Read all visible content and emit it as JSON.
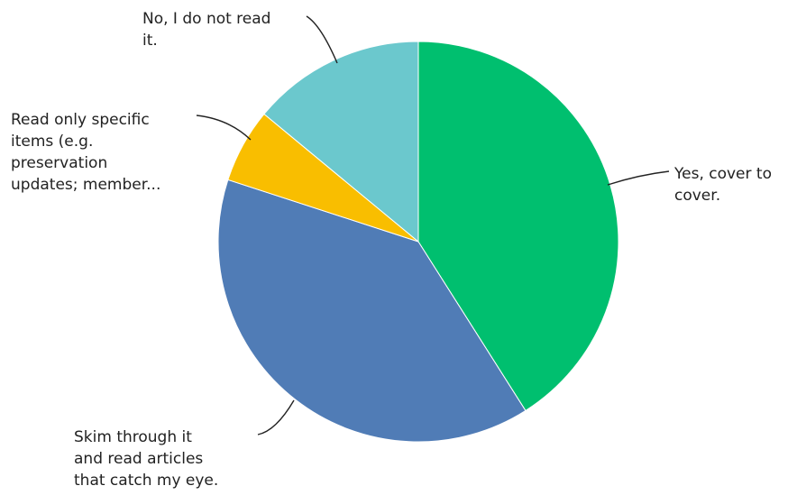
{
  "chart_data": {
    "type": "pie",
    "title": "",
    "slices": [
      {
        "label_lines": [
          "Yes, cover to",
          "cover."
        ],
        "value": 41,
        "color": "#00BF6F"
      },
      {
        "label_lines": [
          "Skim through it",
          "and read articles",
          "that catch my eye."
        ],
        "value": 39,
        "color": "#507CB6"
      },
      {
        "label_lines": [
          "Read only specific",
          "items (e.g.",
          "preservation",
          "updates; member..."
        ],
        "value": 6,
        "color": "#F9BE00"
      },
      {
        "label_lines": [
          "No, I do not read",
          "it."
        ],
        "value": 14,
        "color": "#6BC8CD"
      }
    ],
    "start": "top",
    "direction": "clockwise",
    "legend": "none"
  }
}
